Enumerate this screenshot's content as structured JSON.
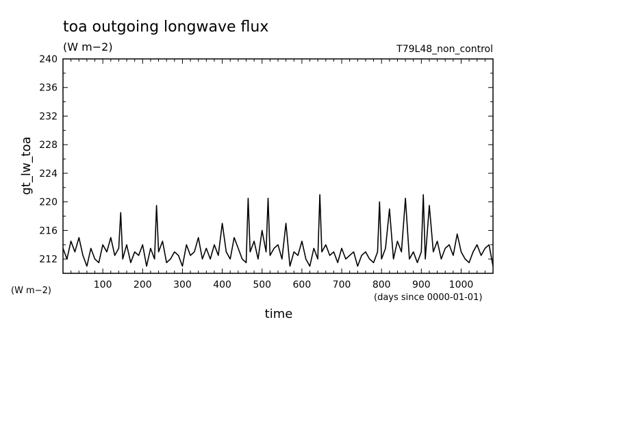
{
  "chart_data": {
    "type": "line",
    "title": "toa outgoing longwave flux",
    "units": "(W m−2)",
    "run_label": "T79L48_non_control",
    "ylabel": "gt_lw_toa",
    "xlabel": "time",
    "x_units": "(days since 0000-01-01)",
    "y_units_corner": "(W m−2)",
    "xlim": [
      0,
      1080
    ],
    "ylim": [
      210,
      240
    ],
    "x_ticks": [
      100,
      200,
      300,
      400,
      500,
      600,
      700,
      800,
      900,
      1000
    ],
    "x_tick_labels": [
      "100",
      "200",
      "300",
      "400",
      "500",
      "600",
      "700",
      "800",
      "900",
      "1000"
    ],
    "y_ticks": [
      212,
      216,
      220,
      224,
      228,
      232,
      236,
      240
    ],
    "y_tick_labels": [
      "212",
      "216",
      "220",
      "224",
      "228",
      "232",
      "236",
      "240"
    ],
    "grid": false,
    "series": [
      {
        "x": [
          0,
          10,
          20,
          30,
          40,
          50,
          60,
          70,
          80,
          90,
          100,
          110,
          120,
          130,
          140,
          145,
          150,
          160,
          170,
          180,
          190,
          200,
          210,
          220,
          230,
          235,
          240,
          250,
          260,
          270,
          280,
          290,
          300,
          310,
          320,
          330,
          340,
          350,
          360,
          370,
          380,
          390,
          400,
          410,
          420,
          430,
          440,
          450,
          460,
          465,
          470,
          480,
          490,
          500,
          510,
          515,
          520,
          530,
          540,
          550,
          560,
          570,
          580,
          590,
          600,
          610,
          620,
          630,
          640,
          645,
          650,
          660,
          670,
          680,
          690,
          700,
          710,
          720,
          730,
          740,
          750,
          760,
          770,
          780,
          790,
          795,
          800,
          810,
          820,
          830,
          840,
          850,
          860,
          870,
          880,
          890,
          900,
          905,
          910,
          920,
          930,
          940,
          950,
          960,
          970,
          980,
          990,
          1000,
          1010,
          1020,
          1030,
          1040,
          1050,
          1060,
          1070,
          1080
        ],
        "y": [
          213.5,
          212,
          214.5,
          213,
          215,
          212.5,
          211,
          213.5,
          212,
          211.5,
          214,
          213,
          215,
          212.5,
          213.5,
          218.5,
          212,
          214,
          211.5,
          213,
          212.5,
          214,
          211,
          213.5,
          212,
          219.5,
          213,
          214.5,
          211.5,
          212,
          213,
          212.5,
          211,
          214,
          212.5,
          213,
          215,
          212,
          213.5,
          212,
          214,
          212.5,
          217,
          213,
          212,
          215,
          213.5,
          212,
          211.5,
          220.5,
          213,
          214.5,
          212,
          216,
          213,
          220.5,
          212.5,
          213.5,
          214,
          212,
          217,
          211,
          213,
          212.5,
          214.5,
          212,
          211,
          213.5,
          212,
          221,
          213,
          214,
          212.5,
          213,
          211.5,
          213.5,
          212,
          212.5,
          213,
          211,
          212.5,
          213,
          212,
          211.5,
          213,
          220,
          212,
          213.5,
          219,
          212,
          214.5,
          213,
          220.5,
          212,
          213,
          211.5,
          213,
          221,
          212,
          219.5,
          213,
          214.5,
          212,
          213.5,
          214,
          212.5,
          215.5,
          213,
          212,
          211.5,
          213,
          214,
          212.5,
          213.5,
          214,
          211
        ]
      }
    ]
  }
}
